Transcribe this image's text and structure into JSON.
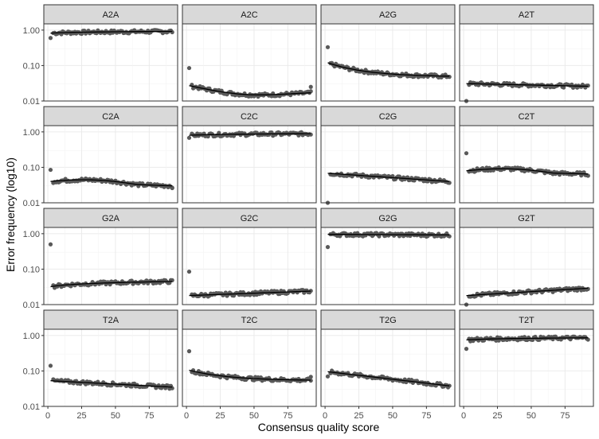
{
  "chart_data": {
    "type": "scatter",
    "xlabel": "Consensus quality score",
    "ylabel": "Error frequency (log10)",
    "y_scale": "log10",
    "ylim": [
      0.01,
      1.5
    ],
    "xlim": [
      -3,
      96
    ],
    "x_ticks": [
      0,
      25,
      50,
      75
    ],
    "x_tick_labels": [
      "0",
      "25",
      "50",
      "75"
    ],
    "y_ticks": [
      1.0,
      0.1,
      0.01
    ],
    "y_tick_labels": [
      "1.00",
      "0.10",
      "0.01"
    ],
    "grid": true,
    "colors": {
      "points": "#595959",
      "fit": "#000000",
      "strip": "#d9d9d9",
      "border": "#333333",
      "grid": "#ebebeb"
    },
    "panels": [
      {
        "name": "A2A",
        "outlier": [
          2,
          0.6
        ],
        "fit_start": 0.82,
        "fit_end": 0.92,
        "shape": "log"
      },
      {
        "name": "A2C",
        "outlier": [
          2,
          0.085
        ],
        "fit_start": 0.027,
        "fit_end": 0.017,
        "shape": "dip",
        "end_point": [
          92,
          0.025
        ]
      },
      {
        "name": "A2G",
        "outlier": [
          2,
          0.33
        ],
        "fit_start": 0.12,
        "fit_end": 0.05,
        "shape": "decay"
      },
      {
        "name": "A2T",
        "outlier": [
          2,
          0.01
        ],
        "fit_start": 0.031,
        "fit_end": 0.026,
        "shape": "linear"
      },
      {
        "name": "C2A",
        "outlier": [
          2,
          0.085
        ],
        "fit_start": 0.04,
        "fit_end": 0.03,
        "shape": "hump",
        "end_point": [
          92,
          0.026
        ]
      },
      {
        "name": "C2C",
        "outlier": [
          2,
          0.68
        ],
        "fit_start": 0.8,
        "fit_end": 0.89,
        "shape": "log"
      },
      {
        "name": "C2G",
        "outlier": [
          2,
          0.01
        ],
        "fit_start": 0.068,
        "fit_end": 0.04,
        "shape": "linear"
      },
      {
        "name": "C2T",
        "outlier": [
          2,
          0.25
        ],
        "fit_start": 0.08,
        "fit_end": 0.065,
        "shape": "hump",
        "end_point": [
          92,
          0.058
        ]
      },
      {
        "name": "G2A",
        "outlier": [
          2,
          0.5
        ],
        "fit_start": 0.032,
        "fit_end": 0.045,
        "shape": "log"
      },
      {
        "name": "G2C",
        "outlier": [
          2,
          0.085
        ],
        "fit_start": 0.018,
        "fit_end": 0.024,
        "shape": "linear"
      },
      {
        "name": "G2G",
        "outlier": [
          2,
          0.42
        ],
        "fit_start": 0.96,
        "fit_end": 0.92,
        "shape": "linear"
      },
      {
        "name": "G2T",
        "outlier": [
          2,
          0.01
        ],
        "fit_start": 0.018,
        "fit_end": 0.029,
        "shape": "linear"
      },
      {
        "name": "T2A",
        "outlier": [
          2,
          0.14
        ],
        "fit_start": 0.053,
        "fit_end": 0.035,
        "shape": "linear"
      },
      {
        "name": "T2C",
        "outlier": [
          2,
          0.36
        ],
        "fit_start": 0.105,
        "fit_end": 0.055,
        "shape": "decay",
        "end_point": [
          92,
          0.068
        ]
      },
      {
        "name": "T2G",
        "outlier": [
          2,
          0.07
        ],
        "fit_start": 0.095,
        "fit_end": 0.038,
        "shape": "linear"
      },
      {
        "name": "T2T",
        "outlier": [
          2,
          0.42
        ],
        "fit_start": 0.75,
        "fit_end": 0.86,
        "shape": "log"
      }
    ]
  }
}
